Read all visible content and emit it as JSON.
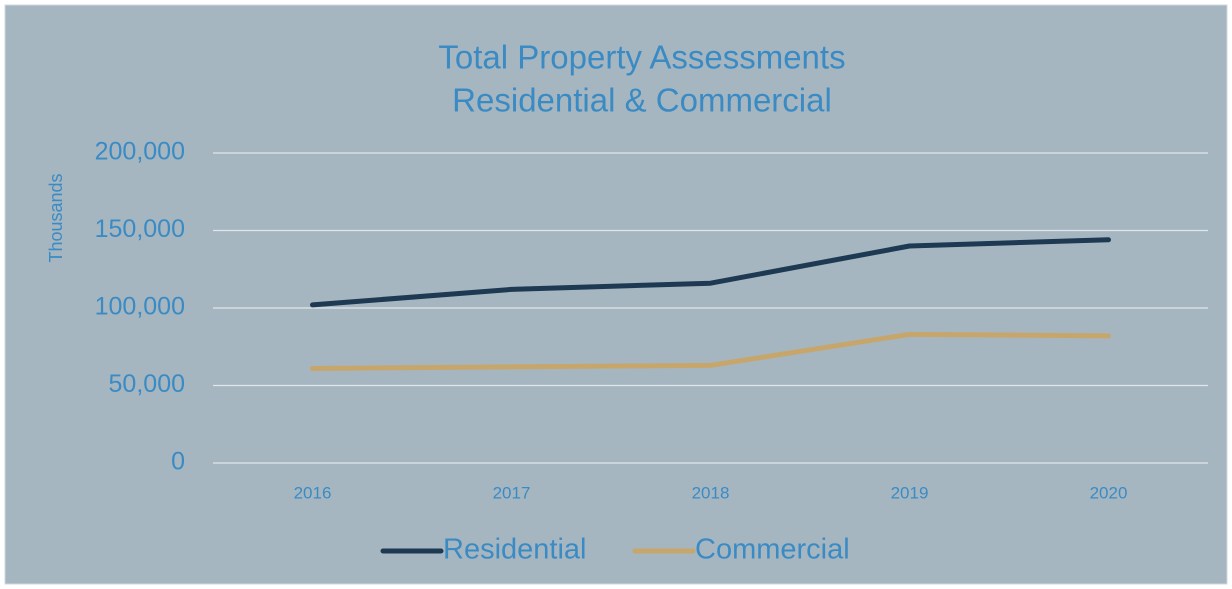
{
  "chart_data": {
    "type": "line",
    "title": "Total Property Assessments",
    "subtitle": "Residential & Commercial",
    "y_label": "Thousands",
    "categories": [
      "2016",
      "2017",
      "2018",
      "2019",
      "2020"
    ],
    "series": [
      {
        "name": "Residential",
        "color": "#1d3a52",
        "values": [
          102000,
          112000,
          116000,
          140000,
          144000
        ]
      },
      {
        "name": "Commercial",
        "color": "#c7a66c",
        "values": [
          61000,
          62000,
          63000,
          83000,
          82000
        ]
      }
    ],
    "ylim": [
      0,
      200000
    ],
    "yticks": [
      0,
      {
        "value": 50000,
        "label": "50,000"
      },
      {
        "value": 100000,
        "label": "100,000"
      },
      {
        "value": 150000,
        "label": "150,000"
      },
      {
        "value": 200000,
        "label": "200,000"
      }
    ],
    "grid": true,
    "legend": "bottom"
  }
}
